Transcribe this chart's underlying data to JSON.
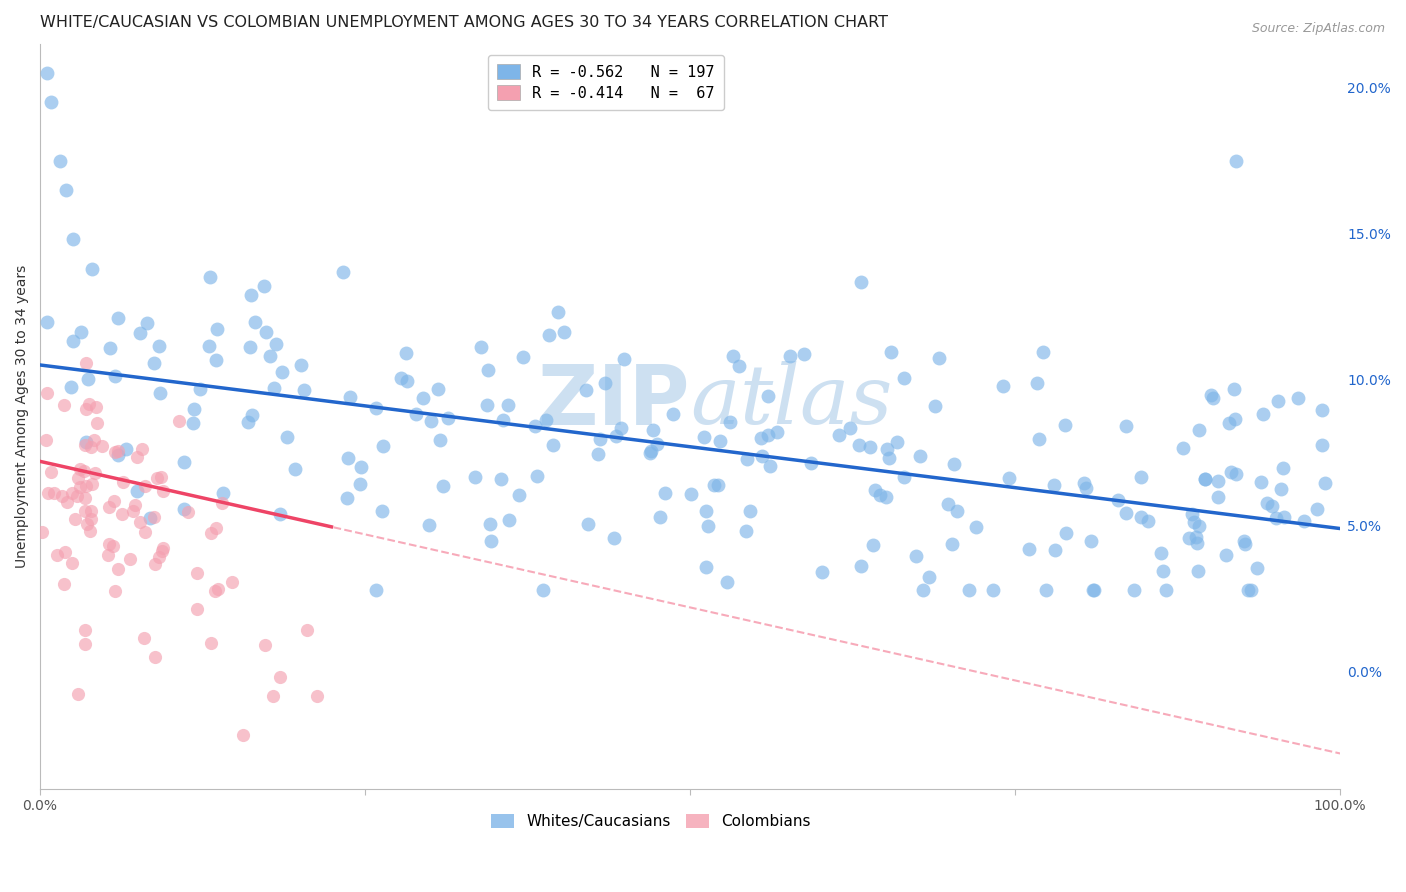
{
  "title": "WHITE/CAUCASIAN VS COLOMBIAN UNEMPLOYMENT AMONG AGES 30 TO 34 YEARS CORRELATION CHART",
  "source": "Source: ZipAtlas.com",
  "ylabel": "Unemployment Among Ages 30 to 34 years",
  "xlim": [
    0,
    1.0
  ],
  "ylim": [
    -0.04,
    0.215
  ],
  "plot_ylim": [
    -0.04,
    0.215
  ],
  "yticks": [
    0.0,
    0.05,
    0.1,
    0.15,
    0.2
  ],
  "ytick_labels": [
    "0.0%",
    "5.0%",
    "10.0%",
    "15.0%",
    "20.0%"
  ],
  "xticks": [
    0.0,
    0.25,
    0.5,
    0.75,
    1.0
  ],
  "xtick_labels": [
    "0.0%",
    "",
    "",
    "",
    "100.0%"
  ],
  "white_R": -0.562,
  "white_N": 197,
  "colombian_R": -0.414,
  "colombian_N": 67,
  "blue_color": "#7EB5E8",
  "pink_color": "#F4A0B0",
  "blue_line_color": "#2266CC",
  "pink_line_color": "#EE4466",
  "watermark_color": "#C8DDF0",
  "title_fontsize": 11.5,
  "axis_label_fontsize": 10,
  "tick_fontsize": 10,
  "legend_fontsize": 11,
  "source_fontsize": 9
}
